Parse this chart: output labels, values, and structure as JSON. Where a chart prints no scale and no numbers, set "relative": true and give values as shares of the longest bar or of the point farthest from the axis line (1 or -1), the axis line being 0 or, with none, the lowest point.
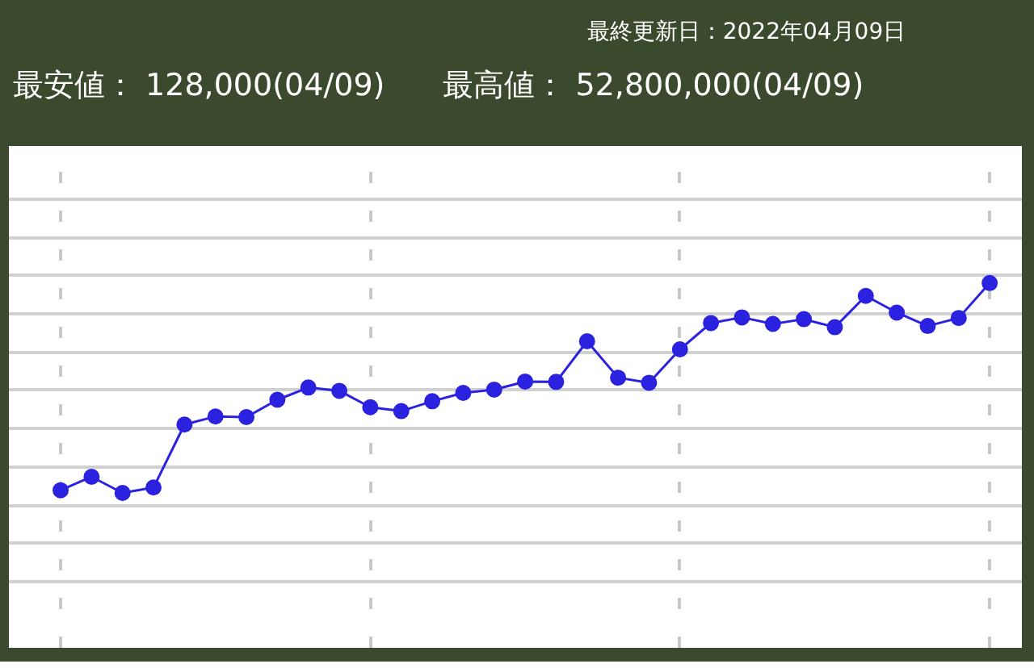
{
  "chart_data": {
    "type": "line",
    "title": "最終更新日：2022年04月09日",
    "annotations": [
      "最安値： 128,000(04/09)",
      "最高値： 52,800,000(04/09)"
    ],
    "categories": [
      null,
      null,
      null,
      null,
      null,
      null,
      null,
      null,
      null,
      null,
      null,
      null,
      null,
      null,
      null,
      null,
      null,
      null,
      null,
      null,
      null,
      null,
      null,
      null,
      null,
      null,
      null,
      null,
      null,
      null,
      null
    ],
    "relative": true,
    "grid": true,
    "marker": "circle",
    "line_style": "solid",
    "series": [
      {
        "color": "#2b22e0",
        "values": [
          0.306,
          0.351,
          0.297,
          0.315,
          0.526,
          0.553,
          0.551,
          0.609,
          0.65,
          0.639,
          0.584,
          0.571,
          0.604,
          0.632,
          0.643,
          0.67,
          0.669,
          0.805,
          0.683,
          0.666,
          0.778,
          0.866,
          0.885,
          0.863,
          0.879,
          0.852,
          0.957,
          0.901,
          0.856,
          0.883,
          1.0
        ]
      }
    ]
  }
}
